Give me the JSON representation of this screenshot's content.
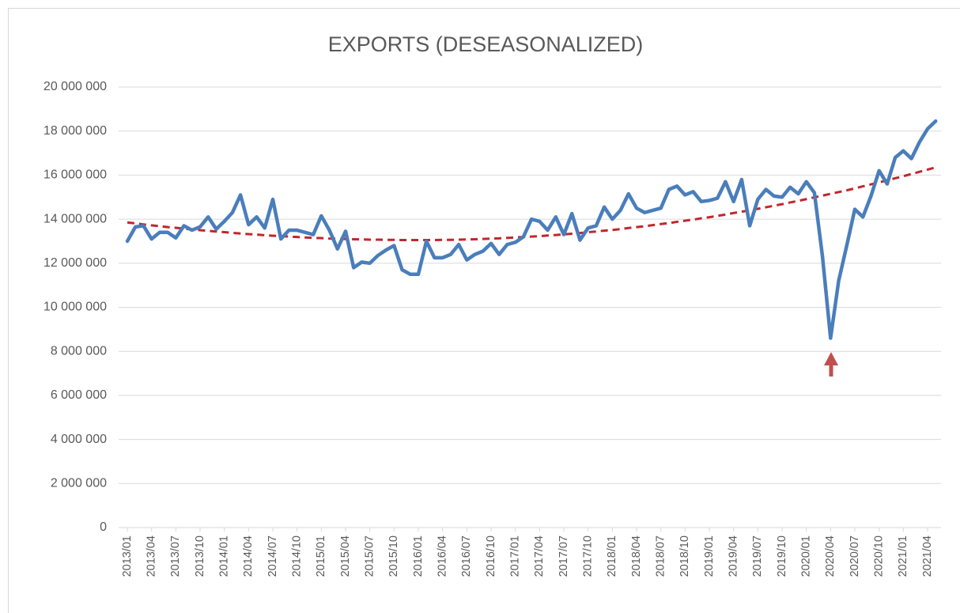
{
  "chart_data": {
    "type": "line",
    "title": "EXPORTS (DESEASONALIZED)",
    "categories": [
      "2013/01",
      null,
      null,
      "2013/04",
      null,
      null,
      "2013/07",
      null,
      null,
      "2013/10",
      null,
      null,
      "2014/01",
      null,
      null,
      "2014/04",
      null,
      null,
      "2014/07",
      null,
      null,
      "2014/10",
      null,
      null,
      "2015/01",
      null,
      null,
      "2015/04",
      null,
      null,
      "2015/07",
      null,
      null,
      "2015/10",
      null,
      null,
      "2016/01",
      null,
      null,
      "2016/04",
      null,
      null,
      "2016/07",
      null,
      null,
      "2016/10",
      null,
      null,
      "2017/01",
      null,
      null,
      "2017/04",
      null,
      null,
      "2017/07",
      null,
      null,
      "2017/10",
      null,
      null,
      "2018/01",
      null,
      null,
      "2018/04",
      null,
      null,
      "2018/07",
      null,
      null,
      "2018/10",
      null,
      null,
      "2019/01",
      null,
      null,
      "2019/04",
      null,
      null,
      "2019/07",
      null,
      null,
      "2019/10",
      null,
      null,
      "2020/01",
      null,
      null,
      "2020/04",
      null,
      null,
      "2020/07",
      null,
      null,
      "2020/10",
      null,
      null,
      "2021/01",
      null,
      null,
      "2021/04",
      null
    ],
    "series": [
      {
        "color": "#4a7ebb",
        "style": "solid",
        "values": [
          13000000,
          13650000,
          13700000,
          13100000,
          13400000,
          13400000,
          13150000,
          13700000,
          13500000,
          13650000,
          14100000,
          13550000,
          13900000,
          14300000,
          15100000,
          13750000,
          14100000,
          13600000,
          14900000,
          13100000,
          13500000,
          13500000,
          13400000,
          13300000,
          14150000,
          13500000,
          12650000,
          13450000,
          11800000,
          12050000,
          12000000,
          12350000,
          12600000,
          12800000,
          11700000,
          11500000,
          11500000,
          13000000,
          12250000,
          12250000,
          12400000,
          12850000,
          12150000,
          12400000,
          12550000,
          12900000,
          12400000,
          12850000,
          12950000,
          13200000,
          14000000,
          13900000,
          13500000,
          14100000,
          13300000,
          14250000,
          13050000,
          13600000,
          13700000,
          14550000,
          14000000,
          14400000,
          15150000,
          14500000,
          14300000,
          14400000,
          14500000,
          15350000,
          15500000,
          15100000,
          15250000,
          14800000,
          14850000,
          14950000,
          15700000,
          14800000,
          15800000,
          13700000,
          14900000,
          15350000,
          15050000,
          15000000,
          15450000,
          15150000,
          15700000,
          15200000,
          12300000,
          8600000,
          11200000,
          12800000,
          14450000,
          14100000,
          15050000,
          16200000,
          15600000,
          16800000,
          17100000,
          16750000,
          17500000,
          18100000,
          18450000
        ]
      },
      {
        "color": "#c0272d",
        "style": "dashed",
        "values": [
          13850000,
          13810000,
          13760000,
          13720000,
          13680000,
          13640000,
          13610000,
          13570000,
          13530000,
          13500000,
          13470000,
          13440000,
          13410000,
          13380000,
          13350000,
          13320000,
          13300000,
          13270000,
          13250000,
          13230000,
          13210000,
          13190000,
          13170000,
          13150000,
          13140000,
          13120000,
          13110000,
          13100000,
          13090000,
          13080000,
          13070000,
          13070000,
          13060000,
          13060000,
          13050000,
          13050000,
          13050000,
          13050000,
          13050000,
          13060000,
          13060000,
          13070000,
          13080000,
          13090000,
          13100000,
          13120000,
          13130000,
          13150000,
          13170000,
          13190000,
          13210000,
          13230000,
          13260000,
          13280000,
          13310000,
          13340000,
          13370000,
          13410000,
          13440000,
          13480000,
          13510000,
          13550000,
          13600000,
          13640000,
          13680000,
          13730000,
          13780000,
          13820000,
          13880000,
          13930000,
          13980000,
          14040000,
          14090000,
          14150000,
          14210000,
          14280000,
          14340000,
          14400000,
          14470000,
          14540000,
          14610000,
          14680000,
          14760000,
          14830000,
          14910000,
          14990000,
          15070000,
          15150000,
          15230000,
          15310000,
          15400000,
          15490000,
          15580000,
          15670000,
          15760000,
          15860000,
          15950000,
          16050000,
          16150000,
          16250000,
          16350000
        ]
      }
    ],
    "ylim": [
      0,
      20000000
    ],
    "yticks": [
      0,
      {
        "value": 2000000,
        "label": "2 000 000"
      },
      {
        "value": 4000000,
        "label": "4 000 000"
      },
      {
        "value": 6000000,
        "label": "6 000 000"
      },
      {
        "value": 8000000,
        "label": "8 000 000"
      },
      {
        "value": 10000000,
        "label": "10 000 000"
      },
      {
        "value": 12000000,
        "label": "12 000 000"
      },
      {
        "value": 14000000,
        "label": "14 000 000"
      },
      {
        "value": 16000000,
        "label": "16 000 000"
      },
      {
        "value": 18000000,
        "label": "18 000 000"
      },
      {
        "value": 20000000,
        "label": "20 000 000"
      }
    ],
    "grid": true
  }
}
